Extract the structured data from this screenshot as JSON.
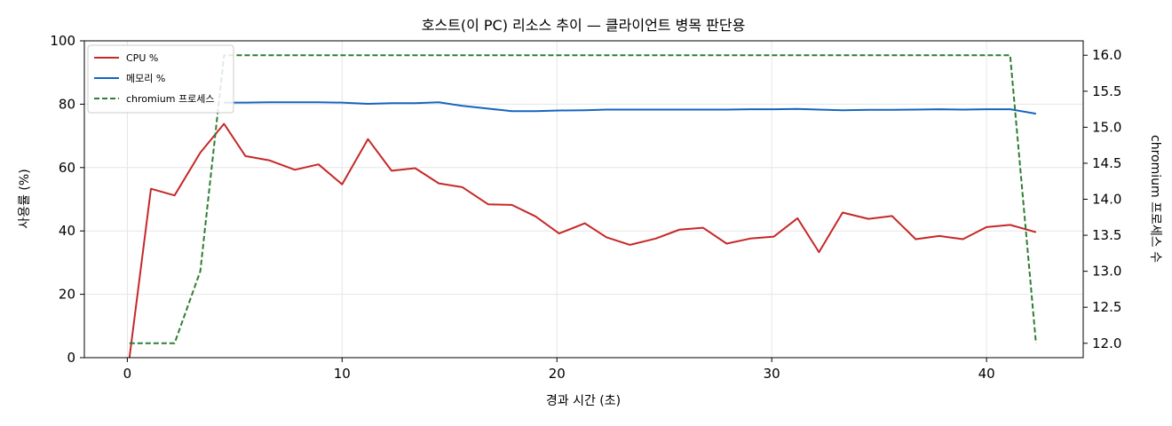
{
  "chart_data": {
    "type": "line",
    "title": "호스트(이 PC) 리소스 추이 — 클라이언트 병목 판단용",
    "xlabel": "경과 시간 (초)",
    "ylabel": "사용률 (%)",
    "y2label": "chromium 프로세스 수",
    "xlim": [
      -2,
      44.5
    ],
    "ylim": [
      0,
      100
    ],
    "y2lim": [
      11.8,
      16.2
    ],
    "xticks": [
      0,
      10,
      20,
      30,
      40
    ],
    "yticks": [
      0,
      20,
      40,
      60,
      80,
      100
    ],
    "y2ticks": [
      12.0,
      12.5,
      13.0,
      13.5,
      14.0,
      14.5,
      15.0,
      15.5,
      16.0
    ],
    "y2tick_labels": [
      "12.0",
      "12.5",
      "13.0",
      "13.5",
      "14.0",
      "14.5",
      "15.0",
      "15.5",
      "16.0"
    ],
    "grid": true,
    "legend_position": "top-left",
    "series": [
      {
        "name": "CPU %",
        "axis": "left",
        "color": "#c62828",
        "style": "solid",
        "x": [
          0.1,
          1.1,
          2.2,
          3.4,
          4.5,
          5.5,
          6.6,
          7.8,
          8.9,
          10.0,
          11.2,
          12.3,
          13.4,
          14.5,
          15.6,
          16.8,
          17.9,
          19.0,
          20.1,
          21.3,
          22.3,
          23.4,
          24.6,
          25.7,
          26.8,
          27.9,
          29.0,
          30.1,
          31.2,
          32.2,
          33.3,
          34.5,
          35.6,
          36.7,
          37.8,
          38.9,
          40.0,
          41.1,
          42.3
        ],
        "y": [
          0,
          53.3,
          51.2,
          64.7,
          73.8,
          63.6,
          62.3,
          59.3,
          61.0,
          54.7,
          69.0,
          59.0,
          59.8,
          55.0,
          53.8,
          48.4,
          48.2,
          44.6,
          39.2,
          42.4,
          38.0,
          35.6,
          37.6,
          40.4,
          41.0,
          36.0,
          37.6,
          38.2,
          44.0,
          33.3,
          45.8,
          43.8,
          44.7,
          37.4,
          38.4,
          37.4,
          41.2,
          41.9,
          39.6
        ]
      },
      {
        "name": "메모리 %",
        "axis": "left",
        "color": "#1565c0",
        "style": "solid",
        "x": [
          4.5,
          5.5,
          6.6,
          7.8,
          8.9,
          10.0,
          11.2,
          12.3,
          13.4,
          14.5,
          15.6,
          16.8,
          17.9,
          19.0,
          20.1,
          21.3,
          22.3,
          23.4,
          24.6,
          25.7,
          26.8,
          27.9,
          29.0,
          30.1,
          31.2,
          32.2,
          33.3,
          34.5,
          35.6,
          36.7,
          37.8,
          38.9,
          40.0,
          41.1,
          42.3
        ],
        "y": [
          80.5,
          80.5,
          80.6,
          80.6,
          80.6,
          80.5,
          80.1,
          80.3,
          80.3,
          80.6,
          79.5,
          78.6,
          77.8,
          77.8,
          78.0,
          78.1,
          78.3,
          78.3,
          78.3,
          78.3,
          78.3,
          78.3,
          78.4,
          78.4,
          78.5,
          78.3,
          78.1,
          78.2,
          78.2,
          78.3,
          78.4,
          78.3,
          78.4,
          78.4,
          77.0
        ]
      },
      {
        "name": "chromium 프로세스",
        "axis": "right",
        "color": "#2e7d32",
        "style": "dashed",
        "x": [
          0.1,
          1.1,
          2.2,
          3.4,
          4.5,
          5.5,
          41.1,
          42.3
        ],
        "y": [
          12.0,
          12.0,
          12.0,
          13.0,
          16.0,
          16.0,
          16.0,
          12.0
        ]
      }
    ]
  }
}
